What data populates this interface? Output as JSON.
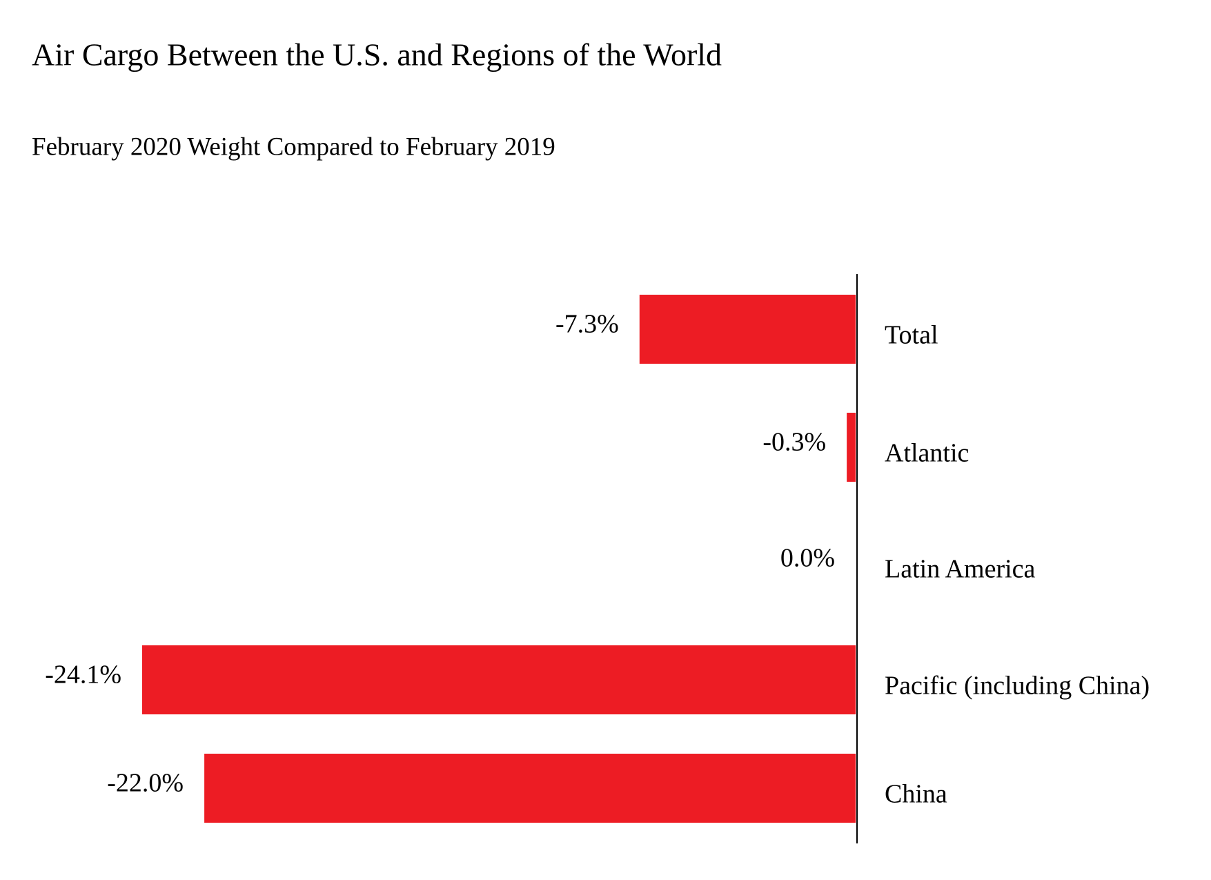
{
  "chart_data": {
    "type": "bar",
    "orientation": "horizontal",
    "title": "Air Cargo Between the U.S. and Regions of the World",
    "subtitle": "February 2020 Weight Compared to February 2019",
    "categories": [
      "Total",
      "Atlantic",
      "Latin America",
      "Pacific (including China)",
      "China"
    ],
    "values": [
      -7.3,
      -0.3,
      0.0,
      -24.1,
      -22.0
    ],
    "value_labels": [
      "-7.3%",
      "-0.3%",
      "0.0%",
      "-24.1%",
      "-22.0%"
    ],
    "color": "#ed1c24"
  }
}
